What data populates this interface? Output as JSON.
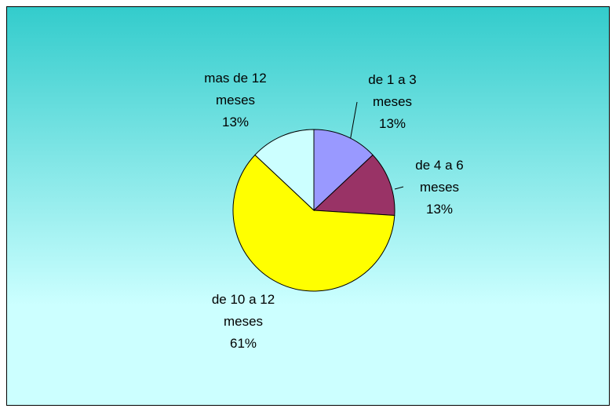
{
  "chart_data": {
    "type": "pie",
    "categories": [
      "de 1 a 3 meses",
      "de 4 a 6 meses",
      "de 10 a 12 meses",
      "mas de 12 meses"
    ],
    "values": [
      13,
      13,
      61,
      13
    ],
    "value_labels": [
      "13%",
      "13%",
      "61%",
      "13%"
    ],
    "colors": [
      "#9999FF",
      "#993366",
      "#FFFF00",
      "#CCFFFF"
    ]
  }
}
